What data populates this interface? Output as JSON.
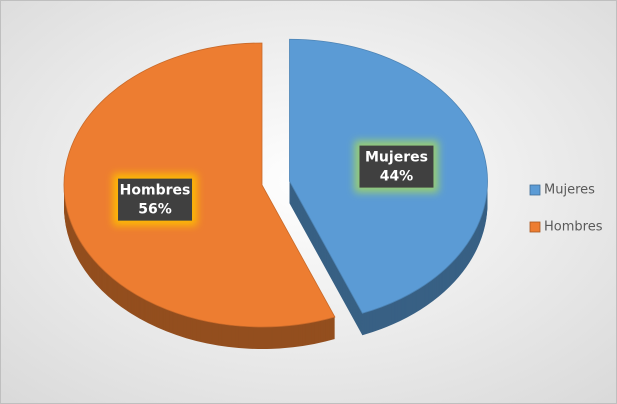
{
  "chart_data": {
    "type": "pie",
    "categories": [
      "Mujeres",
      "Hombres"
    ],
    "values": [
      44,
      56
    ],
    "value_labels": [
      "44%",
      "56%"
    ],
    "colors": [
      "#5b9bd5",
      "#ed7d31"
    ],
    "legend": "right"
  }
}
